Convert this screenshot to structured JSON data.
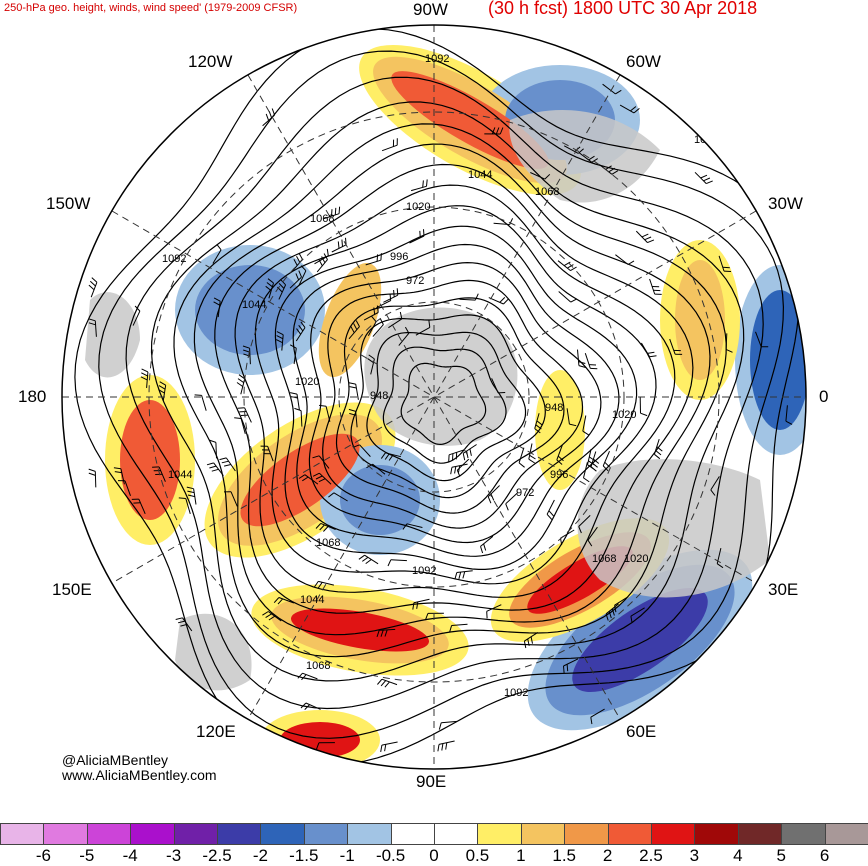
{
  "header": {
    "title_left": "250-hPa geo. height, winds, wind speed' (1979-2009 CFSR)",
    "title_right": "(30 h fcst) 1800 UTC 30 Apr 2018"
  },
  "map": {
    "projection": "north polar stereographic",
    "longitude_labels": {
      "top": "90W",
      "upper_left_120": "120W",
      "upper_right_60": "60W",
      "left_150": "150W",
      "right_30": "30W",
      "left_180": "180",
      "right_0": "0",
      "lower_left_150": "150E",
      "lower_right_30": "30E",
      "lower_left_120": "120E",
      "lower_right_60": "60E",
      "bottom": "90E"
    },
    "contour_labels": [
      "1092",
      "1044",
      "1068",
      "1020",
      "996",
      "972",
      "1092",
      "1044",
      "1020",
      "948",
      "948",
      "1020",
      "996",
      "972",
      "1068",
      "1044",
      "1068",
      "1092",
      "1068",
      "1020",
      "1044",
      "1068",
      "1092",
      "1092"
    ],
    "colors": {
      "land": "#c8c8c8",
      "contour": "#000000"
    }
  },
  "credits": {
    "handle": "@AliciaMBentley",
    "website": "www.AliciaMBentley.com"
  },
  "colorbar": {
    "colors": [
      "#e8b4e8",
      "#e07ae0",
      "#cc44d8",
      "#aa10cc",
      "#7020a8",
      "#3c3ca8",
      "#2e64b8",
      "#6890cc",
      "#a2c4e4",
      "#ffffff",
      "#ffffff",
      "#ffee66",
      "#f4c460",
      "#f09848",
      "#f05a36",
      "#e01414",
      "#a00808",
      "#702828",
      "#707070",
      "#a89898"
    ],
    "tick_labels": [
      "-6",
      "-5",
      "-4",
      "-3",
      "-2.5",
      "-2",
      "-1.5",
      "-1",
      "-0.5",
      "0",
      "0.5",
      "1",
      "1.5",
      "2",
      "2.5",
      "3",
      "4",
      "5",
      "6"
    ]
  }
}
